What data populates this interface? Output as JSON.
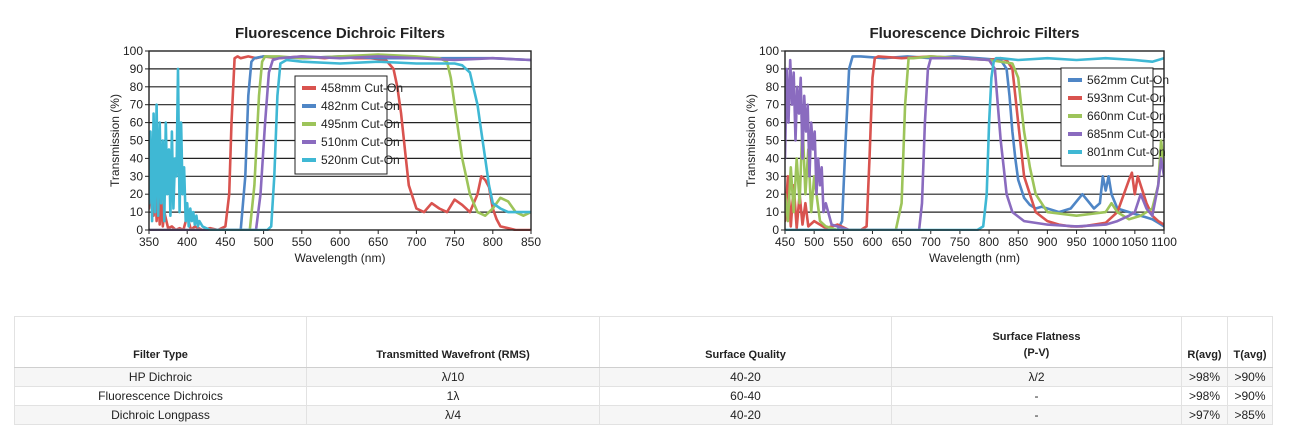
{
  "chart_data": [
    {
      "type": "line",
      "title": "Fluorescence Dichroic Filters",
      "xlabel": "Wavelength (nm)",
      "ylabel": "Transmission (%)",
      "xlim": [
        350,
        850
      ],
      "ylim": [
        0,
        100
      ],
      "xticks": [
        350,
        400,
        450,
        500,
        550,
        600,
        650,
        700,
        750,
        800,
        850
      ],
      "yticks": [
        0,
        10,
        20,
        30,
        40,
        50,
        60,
        70,
        80,
        90,
        100
      ],
      "grid": "horizontal",
      "legend_position": "top-center",
      "series": [
        {
          "name": "458mm Cut-On",
          "color": "#d9534f",
          "x": [
            350,
            353,
            356,
            358,
            360,
            362,
            364,
            366,
            368,
            370,
            375,
            380,
            385,
            390,
            395,
            400,
            405,
            410,
            420,
            430,
            440,
            450,
            455,
            458,
            462,
            466,
            470,
            480,
            490,
            500,
            520,
            550,
            580,
            600,
            620,
            640,
            660,
            670,
            675,
            680,
            685,
            690,
            700,
            710,
            720,
            730,
            740,
            750,
            760,
            770,
            780,
            785,
            790,
            795,
            800,
            805,
            810,
            820,
            830,
            840,
            850
          ],
          "y": [
            12,
            30,
            8,
            35,
            5,
            22,
            3,
            18,
            2,
            10,
            1,
            2,
            0,
            1,
            0,
            8,
            0,
            2,
            0,
            1,
            0,
            2,
            20,
            60,
            96,
            97,
            96,
            97,
            96,
            97,
            96,
            97,
            96,
            97,
            96,
            96,
            95,
            90,
            80,
            65,
            45,
            25,
            12,
            10,
            15,
            12,
            10,
            17,
            14,
            10,
            20,
            30,
            28,
            24,
            12,
            6,
            2,
            1,
            0,
            0,
            0
          ]
        },
        {
          "name": "482nm Cut-On",
          "color": "#4f86c6",
          "x": [
            350,
            400,
            450,
            470,
            476,
            480,
            484,
            488,
            500,
            550,
            600,
            650,
            700,
            750,
            800,
            850
          ],
          "y": [
            0,
            0,
            0,
            0,
            30,
            75,
            94,
            96,
            97,
            96,
            97,
            96,
            96,
            96,
            96,
            95
          ]
        },
        {
          "name": "495nm Cut-On",
          "color": "#9dc45a",
          "x": [
            350,
            400,
            450,
            482,
            488,
            494,
            498,
            502,
            520,
            550,
            600,
            650,
            700,
            730,
            740,
            745,
            750,
            755,
            760,
            765,
            770,
            780,
            790,
            800,
            810,
            820,
            830,
            840,
            850
          ],
          "y": [
            0,
            0,
            0,
            0,
            25,
            75,
            94,
            97,
            97,
            96,
            97,
            98,
            97,
            96,
            94,
            85,
            70,
            55,
            40,
            30,
            20,
            10,
            8,
            12,
            18,
            16,
            10,
            8,
            10
          ]
        },
        {
          "name": "510nm Cut-On",
          "color": "#8a6bbf",
          "x": [
            350,
            400,
            450,
            490,
            496,
            502,
            507,
            512,
            520,
            550,
            600,
            650,
            700,
            750,
            800,
            850
          ],
          "y": [
            0,
            0,
            0,
            0,
            20,
            60,
            88,
            95,
            96,
            97,
            96,
            97,
            96,
            95,
            96,
            95
          ]
        },
        {
          "name": "520nm Cut-On",
          "color": "#3fb8d4",
          "x": [
            350,
            352,
            354,
            356,
            358,
            360,
            362,
            364,
            366,
            368,
            370,
            372,
            374,
            376,
            378,
            380,
            382,
            384,
            386,
            388,
            390,
            392,
            394,
            396,
            398,
            400,
            402,
            404,
            406,
            408,
            410,
            412,
            414,
            416,
            420,
            430,
            440,
            450,
            460,
            470,
            480,
            490,
            500,
            505,
            510,
            514,
            518,
            522,
            530,
            550,
            600,
            650,
            700,
            750,
            760,
            770,
            780,
            785,
            790,
            795,
            800,
            810,
            820,
            830,
            840,
            850
          ],
          "y": [
            15,
            55,
            5,
            65,
            10,
            70,
            8,
            60,
            15,
            50,
            5,
            60,
            20,
            45,
            8,
            55,
            12,
            40,
            30,
            90,
            10,
            60,
            20,
            35,
            5,
            15,
            2,
            12,
            5,
            10,
            3,
            8,
            2,
            5,
            2,
            0,
            0,
            0,
            0,
            0,
            0,
            0,
            0,
            0,
            2,
            30,
            75,
            93,
            95,
            94,
            93,
            94,
            93,
            93,
            92,
            88,
            70,
            55,
            40,
            25,
            15,
            12,
            10,
            10,
            10,
            10
          ]
        }
      ]
    },
    {
      "type": "line",
      "title": "Fluorescence Dichroic Filters",
      "xlabel": "Wavelength (nm)",
      "ylabel": "Transmission (%)",
      "xlim": [
        450,
        1100
      ],
      "ylim": [
        0,
        100
      ],
      "xticks": [
        450,
        500,
        550,
        600,
        650,
        700,
        750,
        800,
        850,
        900,
        950,
        1000,
        1050,
        1100
      ],
      "yticks": [
        0,
        10,
        20,
        30,
        40,
        50,
        60,
        70,
        80,
        90,
        100
      ],
      "grid": "horizontal",
      "legend_position": "top-right",
      "series": [
        {
          "name": "562mm Cut-On",
          "color": "#4f86c6",
          "x": [
            450,
            500,
            540,
            548,
            554,
            560,
            566,
            580,
            620,
            660,
            700,
            740,
            780,
            820,
            830,
            835,
            840,
            845,
            850,
            860,
            870,
            880,
            890,
            900,
            920,
            940,
            960,
            980,
            990,
            995,
            1000,
            1005,
            1010,
            1020,
            1040,
            1060,
            1080,
            1090,
            1100
          ],
          "y": [
            0,
            0,
            0,
            5,
            50,
            90,
            97,
            97,
            96,
            97,
            96,
            97,
            96,
            95,
            90,
            75,
            55,
            40,
            28,
            18,
            14,
            12,
            13,
            12,
            10,
            12,
            20,
            12,
            15,
            30,
            22,
            30,
            20,
            12,
            10,
            8,
            6,
            4,
            2
          ]
        },
        {
          "name": "593nm Cut-On",
          "color": "#d9534f",
          "x": [
            450,
            455,
            460,
            465,
            470,
            475,
            480,
            485,
            490,
            500,
            520,
            540,
            560,
            580,
            590,
            595,
            600,
            604,
            610,
            650,
            700,
            750,
            800,
            820,
            830,
            840,
            850,
            860,
            880,
            900,
            920,
            940,
            960,
            980,
            1000,
            1020,
            1040,
            1045,
            1050,
            1055,
            1060,
            1070,
            1080,
            1090,
            1100
          ],
          "y": [
            5,
            30,
            2,
            25,
            1,
            20,
            3,
            15,
            2,
            5,
            1,
            3,
            0,
            0,
            2,
            40,
            85,
            96,
            97,
            96,
            97,
            96,
            95,
            96,
            95,
            90,
            60,
            30,
            10,
            5,
            3,
            2,
            2,
            3,
            4,
            10,
            28,
            32,
            20,
            30,
            25,
            15,
            8,
            5,
            3
          ]
        },
        {
          "name": "660nm Cut-On",
          "color": "#9dc45a",
          "x": [
            450,
            455,
            460,
            465,
            470,
            475,
            480,
            485,
            490,
            495,
            500,
            510,
            520,
            540,
            580,
            620,
            640,
            650,
            656,
            662,
            670,
            700,
            750,
            800,
            840,
            850,
            855,
            860,
            870,
            880,
            900,
            950,
            1000,
            1010,
            1020,
            1040,
            1060,
            1080,
            1090,
            1095,
            1100
          ],
          "y": [
            20,
            5,
            35,
            10,
            40,
            15,
            60,
            20,
            45,
            10,
            30,
            5,
            2,
            0,
            0,
            0,
            0,
            15,
            70,
            96,
            96,
            97,
            96,
            95,
            93,
            85,
            70,
            55,
            35,
            20,
            10,
            8,
            10,
            15,
            10,
            6,
            8,
            12,
            25,
            50,
            35
          ]
        },
        {
          "name": "685nm Cut-On",
          "color": "#8a6bbf",
          "x": [
            450,
            453,
            456,
            459,
            462,
            465,
            468,
            471,
            474,
            477,
            480,
            483,
            486,
            489,
            492,
            495,
            498,
            501,
            504,
            507,
            510,
            513,
            516,
            520,
            530,
            560,
            600,
            650,
            670,
            680,
            685,
            690,
            695,
            700,
            750,
            800,
            810,
            815,
            820,
            825,
            830,
            840,
            860,
            900,
            950,
            1000,
            1020,
            1040,
            1050,
            1060,
            1070,
            1080,
            1090,
            1095,
            1100
          ],
          "y": [
            40,
            90,
            60,
            95,
            70,
            88,
            50,
            80,
            65,
            85,
            40,
            75,
            55,
            70,
            30,
            60,
            45,
            55,
            20,
            40,
            25,
            35,
            10,
            15,
            3,
            0,
            0,
            0,
            0,
            0,
            15,
            60,
            90,
            96,
            96,
            95,
            90,
            70,
            50,
            35,
            20,
            10,
            5,
            3,
            2,
            3,
            5,
            8,
            10,
            20,
            12,
            8,
            25,
            40,
            30
          ]
        },
        {
          "name": "801nm Cut-On",
          "color": "#3fb8d4",
          "x": [
            450,
            600,
            700,
            780,
            790,
            796,
            800,
            804,
            808,
            812,
            820,
            850,
            900,
            950,
            1000,
            1050,
            1080,
            1100
          ],
          "y": [
            0,
            0,
            0,
            0,
            2,
            20,
            60,
            85,
            94,
            96,
            96,
            95,
            96,
            95,
            96,
            95,
            94,
            96
          ]
        }
      ]
    }
  ],
  "table": {
    "headers": {
      "filter_type": "Filter Type",
      "wavefront": "Transmitted Wavefront (RMS)",
      "surface_quality": "Surface Quality",
      "flatness_line1": "Surface Flatness",
      "flatness_line2": "(P-V)",
      "ravg": "R(avg)",
      "tavg": "T(avg)"
    },
    "rows": [
      {
        "filter_type": "HP Dichroic",
        "wavefront": "λ/10",
        "surface_quality": "40-20",
        "flatness": "λ/2",
        "ravg": ">98%",
        "tavg": ">90%"
      },
      {
        "filter_type": "Fluorescence Dichroics",
        "wavefront": "1λ",
        "surface_quality": "60-40",
        "flatness": "-",
        "ravg": ">98%",
        "tavg": ">90%"
      },
      {
        "filter_type": "Dichroic Longpass",
        "wavefront": "λ/4",
        "surface_quality": "40-20",
        "flatness": "-",
        "ravg": ">97%",
        "tavg": ">85%"
      }
    ]
  }
}
